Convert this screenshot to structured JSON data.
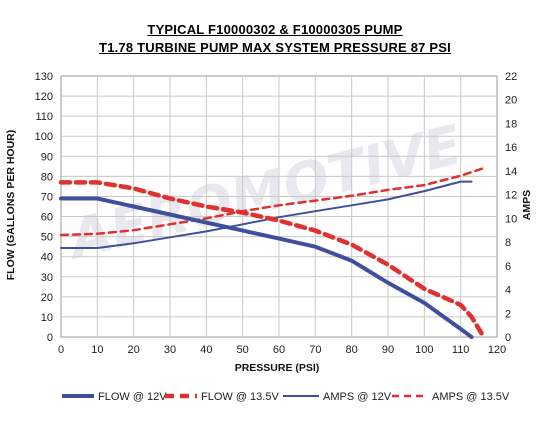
{
  "titles": {
    "line1": "TYPICAL F10000302 & F10000305 PUMP",
    "line2": "T1.78 TURBINE PUMP MAX SYSTEM PRESSURE 87 PSI"
  },
  "chart_data": {
    "type": "line",
    "xlabel": "PRESSURE (PSI)",
    "ylabel": "FLOW (GALLONS PER HOUR)",
    "y2label": "AMPS",
    "xlim": [
      0,
      120
    ],
    "ylim": [
      0,
      130
    ],
    "y2lim": [
      0,
      22
    ],
    "xticks": [
      "0",
      "10",
      "20",
      "30",
      "40",
      "50",
      "60",
      "70",
      "80",
      "90",
      "100",
      "110",
      "120"
    ],
    "yticks": [
      "0",
      "10",
      "20",
      "30",
      "40",
      "50",
      "60",
      "70",
      "80",
      "90",
      "100",
      "110",
      "120",
      "130"
    ],
    "y2ticks": [
      "0",
      "2",
      "4",
      "6",
      "8",
      "10",
      "12",
      "14",
      "16",
      "18",
      "20",
      "22"
    ],
    "grid": true,
    "legend_position": "bottom",
    "series": [
      {
        "name": "FLOW @ 12V",
        "axis": "left",
        "color": "#3f4f9e",
        "style": "solid-thick",
        "x": [
          0,
          10,
          20,
          30,
          40,
          50,
          60,
          70,
          80,
          90,
          100,
          110,
          113
        ],
        "y": [
          69,
          69,
          65,
          61,
          57,
          53,
          49,
          45,
          38,
          27,
          17,
          4,
          0
        ]
      },
      {
        "name": "FLOW @ 13.5V",
        "axis": "left",
        "color": "#e03030",
        "style": "dashed-thick",
        "x": [
          0,
          10,
          20,
          30,
          40,
          50,
          60,
          70,
          80,
          90,
          100,
          110,
          113,
          116
        ],
        "y": [
          77,
          77,
          74,
          69,
          65,
          62,
          58,
          53,
          46,
          36,
          24,
          16,
          10,
          1
        ]
      },
      {
        "name": "AMPS @ 12V",
        "axis": "right",
        "color": "#3f4f9e",
        "style": "solid",
        "x": [
          0,
          10,
          20,
          30,
          40,
          50,
          60,
          70,
          80,
          90,
          100,
          110,
          113
        ],
        "y": [
          7.5,
          7.5,
          7.9,
          8.4,
          8.9,
          9.5,
          10.1,
          10.6,
          11.1,
          11.6,
          12.3,
          13.1,
          13.1
        ]
      },
      {
        "name": "AMPS @ 13.5V",
        "axis": "right",
        "color": "#e03030",
        "style": "dashed",
        "x": [
          0,
          10,
          20,
          30,
          40,
          50,
          60,
          70,
          80,
          90,
          100,
          110,
          116
        ],
        "y": [
          8.6,
          8.7,
          9.0,
          9.5,
          10.0,
          10.6,
          11.1,
          11.5,
          11.9,
          12.4,
          12.8,
          13.6,
          14.2
        ]
      }
    ]
  }
}
